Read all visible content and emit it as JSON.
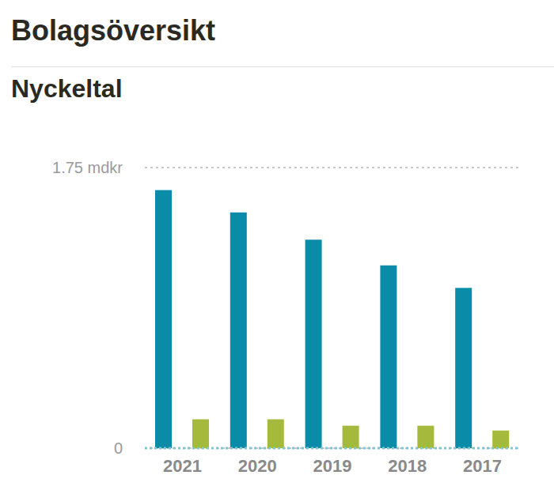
{
  "chart_data": {
    "type": "bar",
    "title": "Bolagsöversikt",
    "subtitle": "Nyckeltal",
    "categories": [
      "2021",
      "2020",
      "2019",
      "2018",
      "2017"
    ],
    "series": [
      {
        "color": "#0a8ba8",
        "values": [
          1.61,
          1.47,
          1.3,
          1.14,
          1.0
        ]
      },
      {
        "color": "#a5b93c",
        "values": [
          0.18,
          0.18,
          0.14,
          0.14,
          0.11
        ]
      }
    ],
    "ylim": [
      0,
      1.75
    ],
    "yticks": [
      0,
      {
        "value": 1.75,
        "label": "1.75 mdkr"
      }
    ],
    "grid": true
  }
}
